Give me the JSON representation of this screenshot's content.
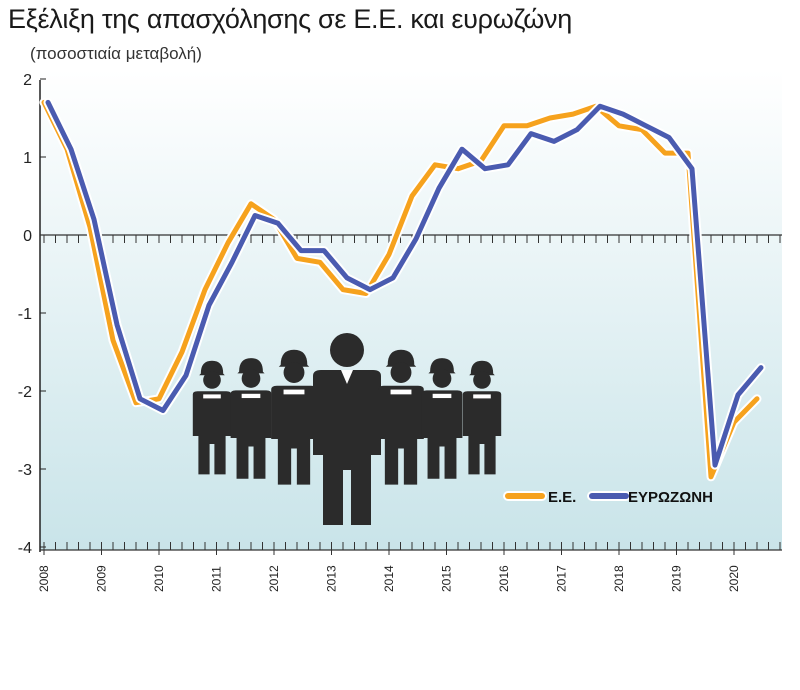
{
  "chart_data": {
    "type": "line",
    "title": "Εξέλιξη της απασχόλησης σε Ε.Ε. και ευρωζώνη",
    "subtitle": "(ποσοστιαία μεταβολή)",
    "xlabel": "",
    "ylabel": "",
    "ylim": [
      -4,
      2
    ],
    "yticks": [
      "2",
      "1",
      "0",
      "-1",
      "-2",
      "-3",
      "-4"
    ],
    "xticks": [
      "2008",
      "2009",
      "2010",
      "2011",
      "2012",
      "2013",
      "2014",
      "2015",
      "2016",
      "2017",
      "2018",
      "2019",
      "2020"
    ],
    "x_start_year": 2008,
    "grid": false,
    "legend": "bottom-right",
    "colors": {
      "eu": "#f6a21d",
      "euro": "#4a5bb0"
    },
    "series": [
      {
        "name": "Ε.Ε.",
        "key": "eu",
        "values": [
          1.7,
          1.1,
          0.1,
          -1.35,
          -2.15,
          -2.1,
          -1.5,
          -0.7,
          -0.1,
          0.4,
          0.2,
          -0.3,
          -0.35,
          -0.7,
          -0.75,
          -0.25,
          0.5,
          0.9,
          0.85,
          0.95,
          1.4,
          1.4,
          1.5,
          1.55,
          1.65,
          1.4,
          1.35,
          1.05,
          1.05,
          -3.1,
          -2.4,
          -2.1
        ]
      },
      {
        "name": "ΕΥΡΩΖΩΝΗ",
        "key": "euro",
        "values": [
          1.7,
          1.1,
          0.2,
          -1.15,
          -2.1,
          -2.25,
          -1.8,
          -0.9,
          -0.35,
          0.25,
          0.15,
          -0.2,
          -0.2,
          -0.55,
          -0.7,
          -0.55,
          -0.05,
          0.6,
          1.1,
          0.85,
          0.9,
          1.3,
          1.2,
          1.35,
          1.65,
          1.55,
          1.4,
          1.25,
          0.85,
          -2.95,
          -2.05,
          -1.7
        ]
      }
    ]
  }
}
